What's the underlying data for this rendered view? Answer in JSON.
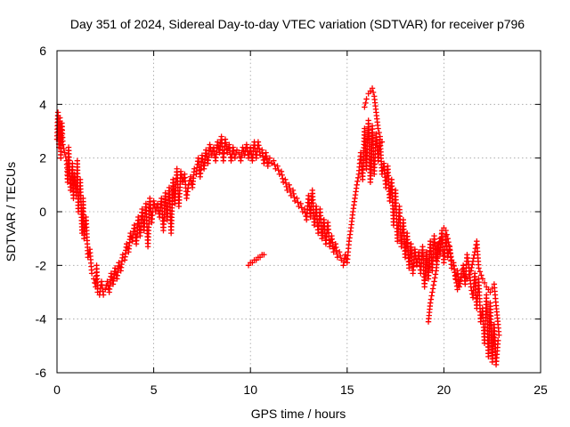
{
  "chart_data": {
    "type": "scatter",
    "title": "Day 351 of 2024, Sidereal Day-to-day VTEC variation (SDTVAR) for receiver p796",
    "xlabel": "GPS time / hours",
    "ylabel": "SDTVAR / TECUs",
    "xlim": [
      0,
      25
    ],
    "ylim": [
      -6,
      6
    ],
    "xticks": [
      0,
      5,
      10,
      15,
      20,
      25
    ],
    "yticks": [
      -6,
      -4,
      -2,
      0,
      2,
      4,
      6
    ],
    "grid": true,
    "marker": "plus",
    "series": [
      {
        "name": "sdtvar-main",
        "color": "#ff0000",
        "points": [
          [
            0.0,
            2.7
          ],
          [
            0.05,
            3.7
          ],
          [
            0.1,
            2.4
          ],
          [
            0.15,
            3.5
          ],
          [
            0.2,
            2.0
          ],
          [
            0.25,
            3.3
          ],
          [
            0.3,
            2.5
          ],
          [
            0.4,
            2.2
          ],
          [
            0.5,
            1.9
          ],
          [
            0.55,
            1.1
          ],
          [
            0.6,
            2.4
          ],
          [
            0.7,
            0.8
          ],
          [
            0.8,
            1.8
          ],
          [
            0.85,
            0.5
          ],
          [
            0.9,
            1.4
          ],
          [
            1.0,
            0.6
          ],
          [
            1.05,
            1.9
          ],
          [
            1.1,
            0.0
          ],
          [
            1.2,
            1.2
          ],
          [
            1.3,
            -0.8
          ],
          [
            1.35,
            0.5
          ],
          [
            1.4,
            -1.0
          ],
          [
            1.5,
            -0.2
          ],
          [
            1.6,
            -1.7
          ],
          [
            1.7,
            -1.4
          ],
          [
            1.8,
            -2.3
          ],
          [
            1.9,
            -2.5
          ],
          [
            2.0,
            -2.8
          ],
          [
            2.05,
            -2.0
          ],
          [
            2.1,
            -3.0
          ],
          [
            2.2,
            -3.1
          ],
          [
            2.3,
            -2.6
          ],
          [
            2.4,
            -3.1
          ],
          [
            2.5,
            -2.9
          ],
          [
            2.6,
            -2.6
          ],
          [
            2.7,
            -3.0
          ],
          [
            2.8,
            -2.3
          ],
          [
            2.9,
            -2.7
          ],
          [
            3.0,
            -2.1
          ],
          [
            3.1,
            -2.5
          ],
          [
            3.2,
            -1.9
          ],
          [
            3.3,
            -2.2
          ],
          [
            3.4,
            -1.6
          ],
          [
            3.5,
            -1.8
          ],
          [
            3.6,
            -1.2
          ],
          [
            3.7,
            -1.5
          ],
          [
            3.8,
            -0.8
          ],
          [
            3.9,
            -1.1
          ],
          [
            4.0,
            -0.5
          ],
          [
            4.1,
            -1.2
          ],
          [
            4.2,
            -0.2
          ],
          [
            4.3,
            -0.9
          ],
          [
            4.4,
            0.1
          ],
          [
            4.5,
            -0.7
          ],
          [
            4.6,
            0.3
          ],
          [
            4.7,
            -1.3
          ],
          [
            4.8,
            0.5
          ],
          [
            4.9,
            -0.4
          ],
          [
            5.0,
            0.4
          ],
          [
            5.1,
            0.0
          ],
          [
            5.2,
            0.3
          ],
          [
            5.3,
            -0.2
          ],
          [
            5.4,
            0.5
          ],
          [
            5.5,
            -0.7
          ],
          [
            5.6,
            0.7
          ],
          [
            5.7,
            -0.3
          ],
          [
            5.8,
            0.9
          ],
          [
            5.9,
            -0.8
          ],
          [
            6.0,
            1.2
          ],
          [
            6.1,
            0.3
          ],
          [
            6.2,
            1.6
          ],
          [
            6.3,
            0.2
          ],
          [
            6.4,
            1.5
          ],
          [
            6.5,
            1.1
          ],
          [
            6.6,
            1.4
          ],
          [
            6.7,
            0.5
          ],
          [
            6.8,
            1.0
          ],
          [
            6.9,
            1.3
          ],
          [
            7.0,
            0.9
          ],
          [
            7.1,
            1.6
          ],
          [
            7.2,
            1.4
          ],
          [
            7.3,
            2.0
          ],
          [
            7.4,
            1.3
          ],
          [
            7.5,
            2.1
          ],
          [
            7.6,
            1.6
          ],
          [
            7.7,
            2.3
          ],
          [
            7.8,
            1.8
          ],
          [
            7.9,
            2.5
          ],
          [
            8.0,
            2.1
          ],
          [
            8.1,
            2.4
          ],
          [
            8.2,
            1.9
          ],
          [
            8.3,
            2.6
          ],
          [
            8.4,
            2.2
          ],
          [
            8.5,
            2.8
          ],
          [
            8.6,
            1.9
          ],
          [
            8.7,
            2.7
          ],
          [
            8.8,
            2.2
          ],
          [
            8.9,
            2.5
          ],
          [
            9.0,
            1.9
          ],
          [
            9.1,
            2.4
          ],
          [
            9.2,
            2.0
          ],
          [
            9.3,
            2.3
          ],
          [
            9.4,
            2.2
          ],
          [
            9.5,
            1.9
          ],
          [
            9.6,
            2.4
          ],
          [
            9.7,
            2.1
          ],
          [
            9.8,
            2.5
          ],
          [
            9.9,
            2.0
          ],
          [
            10.0,
            2.4
          ],
          [
            10.1,
            1.9
          ],
          [
            10.2,
            2.6
          ],
          [
            10.3,
            2.0
          ],
          [
            10.4,
            2.6
          ],
          [
            10.5,
            2.1
          ],
          [
            10.6,
            2.3
          ],
          [
            10.7,
            1.8
          ],
          [
            10.8,
            2.2
          ],
          [
            10.9,
            1.7
          ],
          [
            11.0,
            2.0
          ],
          [
            11.1,
            1.8
          ],
          [
            11.2,
            1.9
          ],
          [
            11.3,
            1.6
          ],
          [
            11.4,
            1.7
          ],
          [
            11.5,
            1.4
          ],
          [
            11.6,
            1.5
          ],
          [
            11.7,
            1.1
          ],
          [
            11.8,
            1.2
          ],
          [
            11.9,
            0.8
          ],
          [
            12.0,
            1.0
          ],
          [
            12.1,
            0.6
          ],
          [
            12.2,
            0.8
          ],
          [
            12.3,
            0.4
          ],
          [
            12.4,
            0.5
          ],
          [
            12.5,
            0.2
          ],
          [
            12.6,
            0.3
          ],
          [
            12.7,
            0.0
          ],
          [
            12.8,
            0.1
          ],
          [
            12.9,
            -0.3
          ],
          [
            13.0,
            0.6
          ],
          [
            13.1,
            -0.2
          ],
          [
            13.2,
            0.8
          ],
          [
            13.3,
            -0.5
          ],
          [
            13.4,
            0.2
          ],
          [
            13.5,
            -0.8
          ],
          [
            13.6,
            0.1
          ],
          [
            13.7,
            -1.0
          ],
          [
            13.8,
            -0.3
          ],
          [
            13.9,
            -1.2
          ],
          [
            14.0,
            -0.4
          ],
          [
            14.1,
            -1.3
          ],
          [
            14.2,
            -0.9
          ],
          [
            14.3,
            -1.5
          ],
          [
            14.4,
            -1.2
          ],
          [
            14.5,
            -1.7
          ],
          [
            14.6,
            -1.5
          ],
          [
            14.7,
            -1.8
          ],
          [
            14.8,
            -2.0
          ],
          [
            14.9,
            -1.6
          ],
          [
            15.0,
            -1.9
          ],
          [
            15.1,
            -1.1
          ],
          [
            15.2,
            -0.6
          ],
          [
            15.3,
            0.0
          ],
          [
            15.4,
            0.5
          ],
          [
            15.5,
            1.0
          ],
          [
            15.6,
            1.4
          ],
          [
            15.7,
            2.2
          ],
          [
            15.8,
            1.2
          ],
          [
            15.9,
            3.1
          ],
          [
            16.0,
            1.6
          ],
          [
            16.1,
            3.4
          ],
          [
            16.2,
            1.1
          ],
          [
            16.3,
            3.2
          ],
          [
            16.4,
            1.4
          ],
          [
            16.5,
            2.9
          ],
          [
            16.6,
            1.9
          ],
          [
            16.7,
            2.7
          ],
          [
            16.8,
            1.4
          ],
          [
            16.9,
            1.8
          ],
          [
            17.0,
            0.9
          ],
          [
            17.1,
            1.7
          ],
          [
            17.2,
            0.4
          ],
          [
            17.3,
            1.2
          ],
          [
            17.4,
            -0.5
          ],
          [
            17.5,
            0.8
          ],
          [
            17.6,
            -1.1
          ],
          [
            17.7,
            0.2
          ],
          [
            17.8,
            -1.3
          ],
          [
            17.9,
            -0.3
          ],
          [
            18.0,
            -1.7
          ],
          [
            18.1,
            -0.8
          ],
          [
            18.2,
            -2.1
          ],
          [
            18.3,
            -1.2
          ],
          [
            18.4,
            -2.3
          ],
          [
            18.5,
            -1.4
          ],
          [
            18.6,
            -2.0
          ],
          [
            18.7,
            -1.5
          ],
          [
            18.8,
            -2.3
          ],
          [
            18.9,
            -1.3
          ],
          [
            19.0,
            -2.8
          ],
          [
            19.1,
            -1.5
          ],
          [
            19.2,
            -2.5
          ],
          [
            19.3,
            -1.1
          ],
          [
            19.4,
            -2.2
          ],
          [
            19.5,
            -0.9
          ],
          [
            19.6,
            -1.8
          ],
          [
            19.7,
            -1.2
          ],
          [
            19.8,
            -1.6
          ],
          [
            19.9,
            -0.7
          ],
          [
            20.0,
            -1.9
          ],
          [
            20.1,
            -0.9
          ],
          [
            20.2,
            -1.7
          ],
          [
            20.3,
            -1.3
          ],
          [
            20.4,
            -2.1
          ],
          [
            20.5,
            -1.9
          ],
          [
            20.6,
            -2.5
          ],
          [
            20.7,
            -2.2
          ],
          [
            20.8,
            -2.8
          ],
          [
            20.9,
            -2.3
          ],
          [
            21.0,
            -2.0
          ],
          [
            21.1,
            -2.7
          ],
          [
            21.2,
            -1.6
          ],
          [
            21.3,
            -2.1
          ],
          [
            21.4,
            -2.8
          ],
          [
            21.5,
            -3.2
          ],
          [
            21.6,
            -2.3
          ],
          [
            21.7,
            -3.6
          ],
          [
            21.8,
            -2.5
          ],
          [
            21.9,
            -4.1
          ],
          [
            22.0,
            -3.6
          ],
          [
            22.1,
            -4.9
          ],
          [
            22.2,
            -3.1
          ],
          [
            22.3,
            -5.4
          ],
          [
            22.4,
            -3.4
          ],
          [
            22.5,
            -5.6
          ],
          [
            22.6,
            -4.2
          ],
          [
            22.7,
            -5.7
          ],
          [
            22.8,
            -4.8
          ]
        ]
      },
      {
        "name": "sdtvar-upper-track",
        "color": "#ff0000",
        "points": [
          [
            15.9,
            3.9
          ],
          [
            16.0,
            4.2
          ],
          [
            16.1,
            4.4
          ],
          [
            16.2,
            4.5
          ],
          [
            16.3,
            4.6
          ],
          [
            16.4,
            4.3
          ],
          [
            16.5,
            3.7
          ],
          [
            16.6,
            3.1
          ],
          [
            16.7,
            2.8
          ],
          [
            16.8,
            2.6
          ]
        ]
      },
      {
        "name": "sdtvar-segment-10h",
        "color": "#ff0000",
        "points": [
          [
            9.9,
            -2.0
          ],
          [
            10.0,
            -1.9
          ],
          [
            10.1,
            -1.9
          ],
          [
            10.2,
            -1.8
          ],
          [
            10.3,
            -1.8
          ],
          [
            10.4,
            -1.7
          ],
          [
            10.5,
            -1.7
          ],
          [
            10.6,
            -1.6
          ],
          [
            10.7,
            -1.6
          ]
        ]
      },
      {
        "name": "sdtvar-late-track",
        "color": "#ff0000",
        "points": [
          [
            19.2,
            -4.1
          ],
          [
            19.3,
            -3.4
          ],
          [
            19.4,
            -3.0
          ],
          [
            19.5,
            -2.6
          ],
          [
            19.6,
            -2.2
          ],
          [
            19.7,
            -1.5
          ],
          [
            19.8,
            -1.0
          ],
          [
            19.9,
            -0.8
          ],
          [
            20.0,
            -0.6
          ],
          [
            20.1,
            -0.7
          ],
          [
            20.2,
            -1.0
          ],
          [
            20.3,
            -1.4
          ],
          [
            20.4,
            -1.8
          ],
          [
            20.5,
            -2.0
          ],
          [
            20.6,
            -2.4
          ],
          [
            20.7,
            -2.9
          ],
          [
            20.8,
            -2.6
          ],
          [
            21.0,
            -2.3
          ],
          [
            21.2,
            -2.5
          ],
          [
            21.4,
            -2.2
          ],
          [
            21.6,
            -1.5
          ],
          [
            21.7,
            -1.1
          ],
          [
            21.8,
            -2.1
          ],
          [
            22.0,
            -2.5
          ],
          [
            22.2,
            -2.8
          ],
          [
            22.4,
            -3.0
          ],
          [
            22.6,
            -2.7
          ],
          [
            22.7,
            -3.5
          ],
          [
            22.8,
            -4.2
          ],
          [
            22.85,
            -4.6
          ]
        ]
      }
    ]
  }
}
